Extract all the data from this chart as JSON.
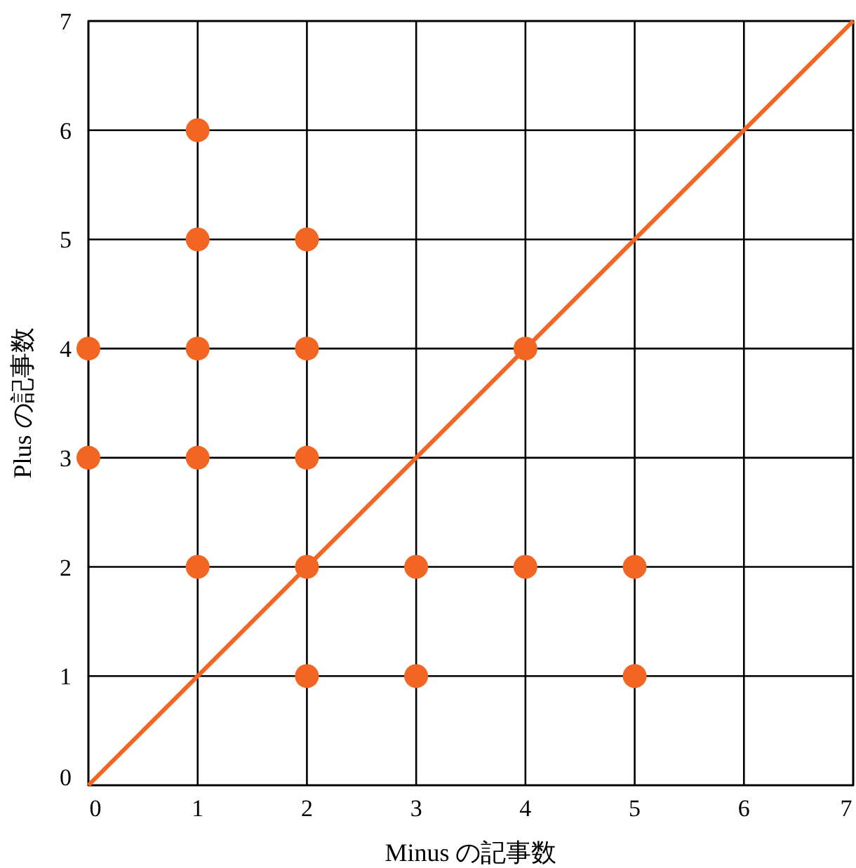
{
  "chart_data": {
    "type": "scatter",
    "xlabel": "Minus の記事数",
    "ylabel": "Plus の記事数",
    "xlim": [
      0,
      7
    ],
    "ylim": [
      0,
      7
    ],
    "xticks": [
      0,
      1,
      2,
      3,
      4,
      5,
      6,
      7
    ],
    "yticks": [
      0,
      1,
      2,
      3,
      4,
      5,
      6,
      7
    ],
    "grid": true,
    "series": [
      {
        "type": "line",
        "color": "#f26522",
        "x": [
          0,
          7
        ],
        "values": [
          0,
          7
        ]
      },
      {
        "marker": "circle",
        "color": "#f26522",
        "x": [
          0,
          0,
          1,
          1,
          1,
          1,
          1,
          2,
          2,
          2,
          2,
          2,
          3,
          3,
          4,
          4,
          5,
          5
        ],
        "values": [
          3,
          4,
          2,
          3,
          4,
          5,
          6,
          1,
          2,
          3,
          4,
          5,
          1,
          2,
          2,
          4,
          1,
          2
        ]
      }
    ]
  }
}
